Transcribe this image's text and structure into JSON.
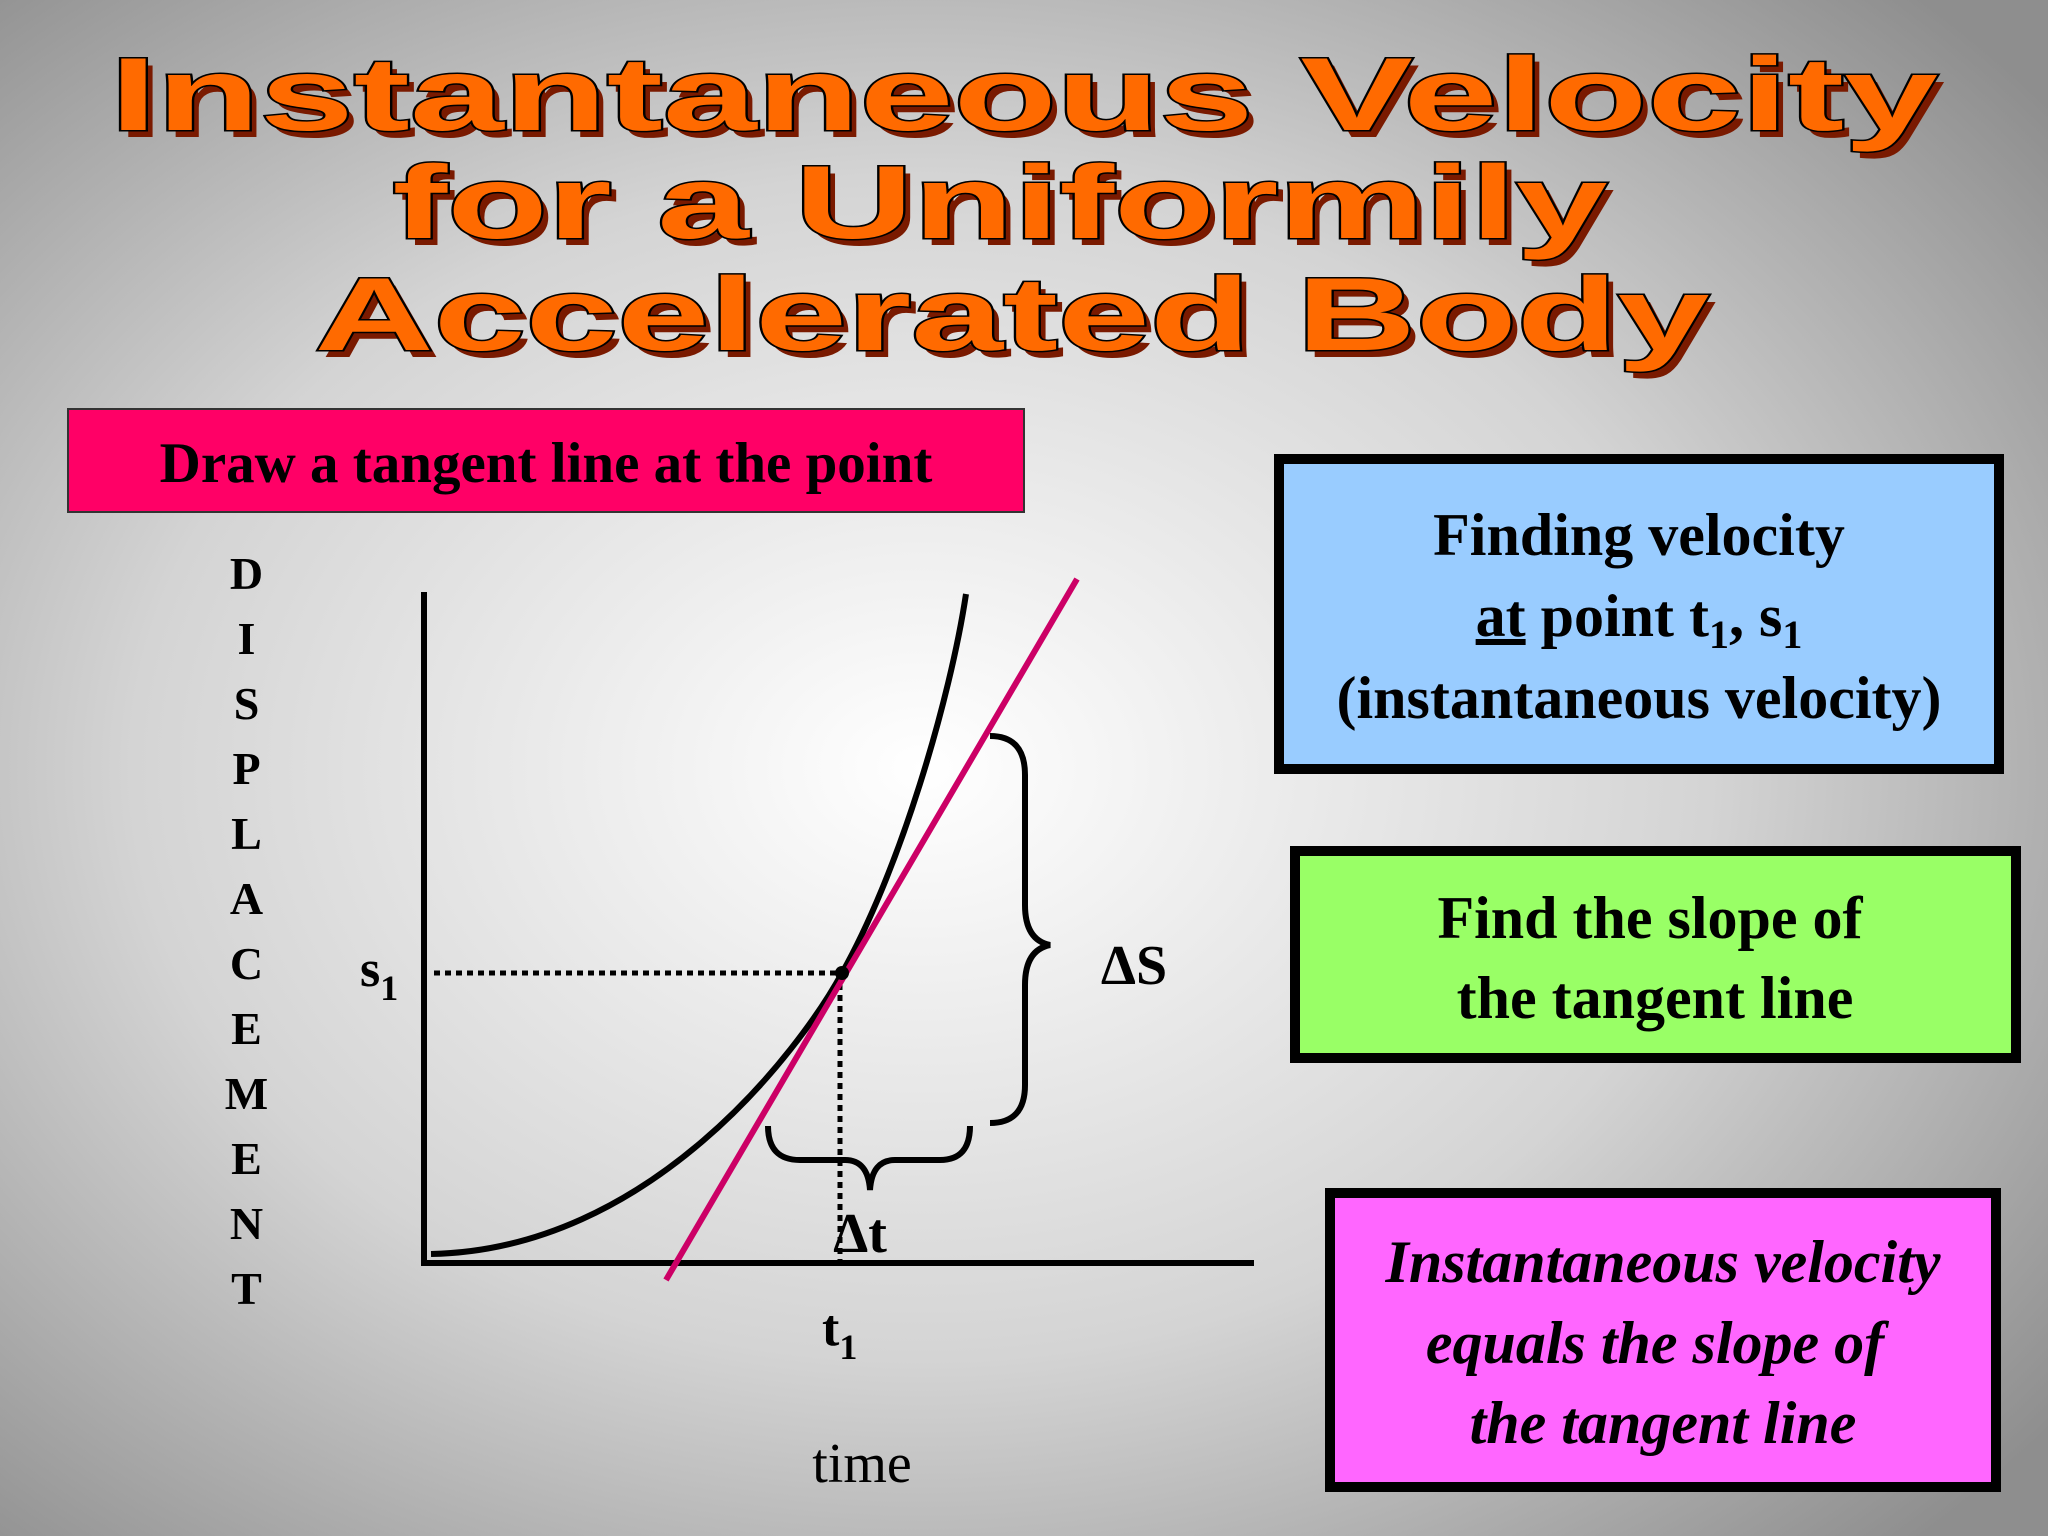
{
  "title": {
    "lines": [
      "Instantaneous Velocity",
      "for a Uniformily",
      "Accelerated Body"
    ]
  },
  "instruction": "Draw a tangent line at the point",
  "graph": {
    "y_axis_label": "DISPLACEMENT",
    "x_axis_label": "time",
    "point_s": {
      "base": "s",
      "sub": "1"
    },
    "point_t": {
      "base": "t",
      "sub": "1"
    },
    "delta_s": "ΔS",
    "delta_t": "Δt"
  },
  "boxes": [
    {
      "line1": "Finding velocity",
      "line2": [
        "at",
        " point t",
        "1",
        ", s",
        "1"
      ],
      "line3": "(instantaneous velocity)"
    },
    {
      "line1": "Find the slope of",
      "line2": "the tangent line"
    },
    {
      "line1": "Instantaneous velocity",
      "line2": "equals the slope of",
      "line3": "the tangent line"
    }
  ]
}
